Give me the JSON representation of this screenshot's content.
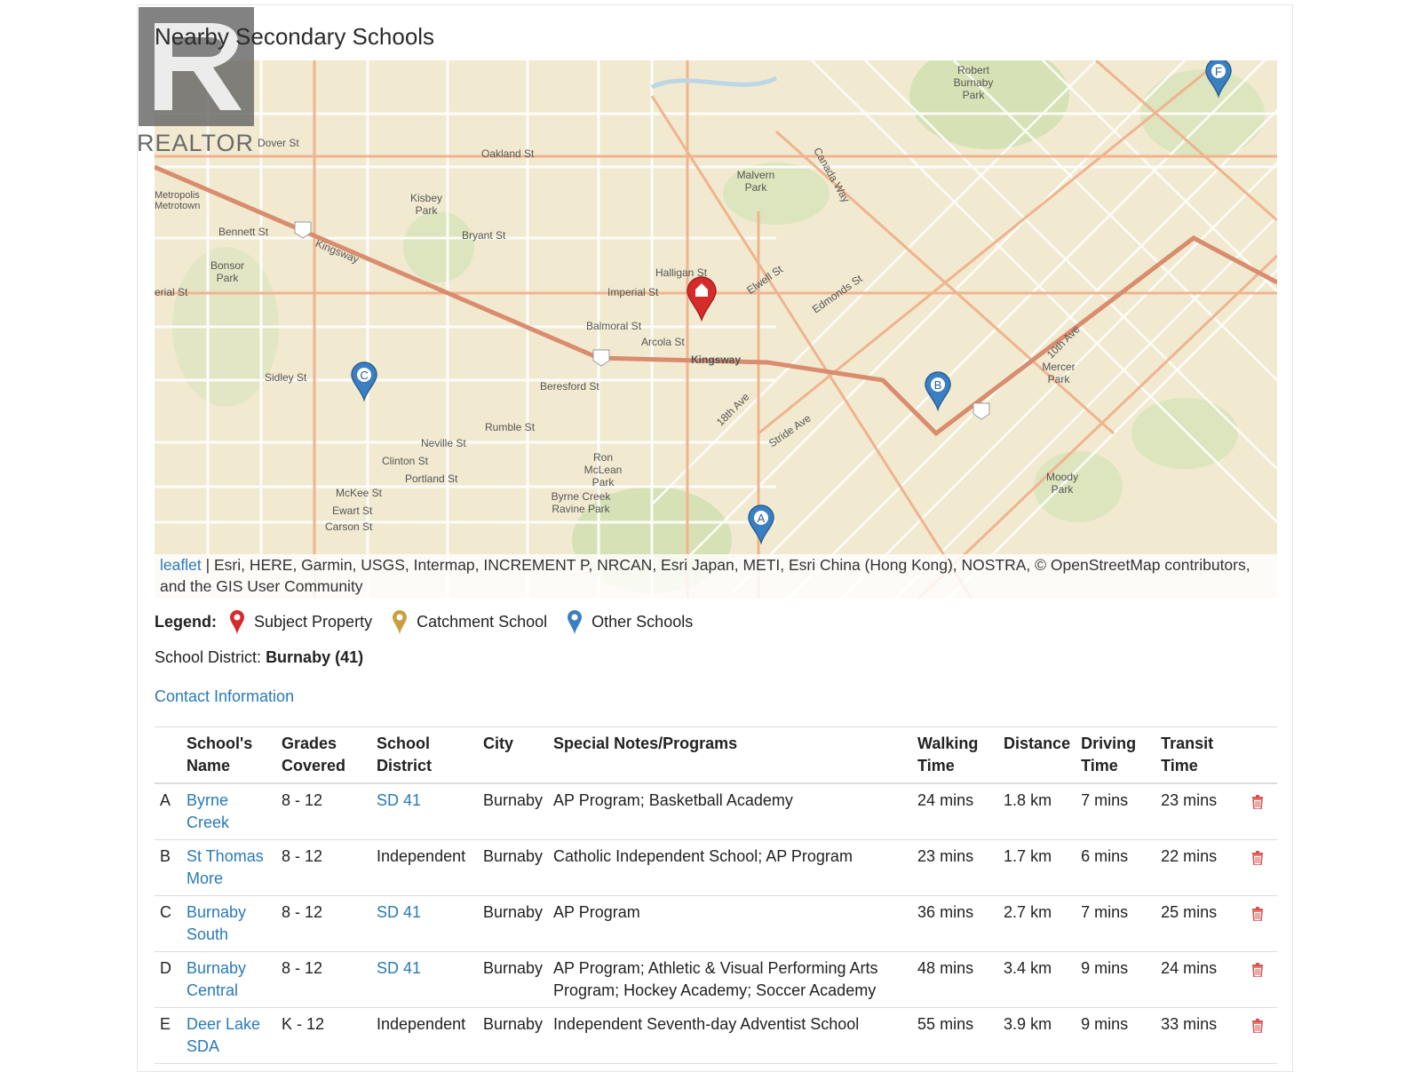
{
  "header": {
    "title": "Nearby Secondary Schools"
  },
  "logo": {
    "text": "REALTOR"
  },
  "map": {
    "attribution_link": "leaflet",
    "attribution_text": " | Esri, HERE, Garmin, USGS, Intermap, INCREMENT P, NRCAN, Esri Japan, METI, Esri China (Hong Kong), NOSTRA, © OpenStreetMap contributors, and the GIS User Community",
    "labels": {
      "oakland": "Oakland St",
      "bennett": "Bennett St",
      "bryant": "Bryant St",
      "kingsway_w": "Kingsway",
      "kingsway_e": "Kingsway",
      "imperial": "Imperial St",
      "halligan": "Halligan St",
      "balmoral": "Balmoral St",
      "arcola": "Arcola St",
      "beresford": "Beresford St",
      "rumble": "Rumble St",
      "neville": "Neville St",
      "clinton": "Clinton St",
      "portland": "Portland St",
      "mckee": "McKee St",
      "ewart": "Ewart St",
      "carson": "Carson St",
      "sidley": "Sidley St",
      "dover": "Dover St",
      "edmonds": "Edmonds St",
      "canada": "Canada Way",
      "elwell": "Elwell St",
      "robert": "Robert Burnaby Park",
      "malvern": "Malvern Park",
      "kisbey": "Kisbey Park",
      "bonsor": "Bonsor Park",
      "ron": "Ron McLean Park",
      "byrne": "Byrne Creek Ravine Park",
      "mercer": "Mercer Park",
      "moody": "Moody Park",
      "metrotown": "Metropolis Metrotown",
      "stride": "Stride Ave",
      "tenth": "10th Ave",
      "eighteenth": "18th Ave",
      "imperial_w": "erial St"
    },
    "markers": {
      "a": "A",
      "b": "B",
      "c": "C",
      "f": "F"
    },
    "colors": {
      "subject": "#d62b2b",
      "catchment": "#c8a040",
      "other": "#3a7fc2"
    }
  },
  "legend": {
    "label": "Legend:",
    "subject": "Subject Property",
    "catchment": "Catchment School",
    "other": "Other Schools"
  },
  "district": {
    "label": "School District:",
    "value": "Burnaby (41)"
  },
  "contact": {
    "label": "Contact Information"
  },
  "table": {
    "headers": {
      "name": "School's Name",
      "grades": "Grades Covered",
      "district": "School District",
      "city": "City",
      "notes": "Special Notes/Programs",
      "walking": "Walking Time",
      "distance": "Distance",
      "driving": "Driving Time",
      "transit": "Transit Time"
    },
    "rows": [
      {
        "letter": "A",
        "name": "Byrne Creek",
        "grades": "8 - 12",
        "district": "SD 41",
        "district_link": true,
        "city": "Burnaby",
        "notes": "AP Program; Basketball Academy",
        "walking": "24 mins",
        "distance": "1.8 km",
        "driving": "7 mins",
        "transit": "23 mins"
      },
      {
        "letter": "B",
        "name": "St Thomas More",
        "grades": "8 - 12",
        "district": "Independent",
        "district_link": false,
        "city": "Burnaby",
        "notes": "Catholic Independent School; AP Program",
        "walking": "23 mins",
        "distance": "1.7 km",
        "driving": "6 mins",
        "transit": "22 mins"
      },
      {
        "letter": "C",
        "name": "Burnaby South",
        "grades": "8 - 12",
        "district": "SD 41",
        "district_link": true,
        "city": "Burnaby",
        "notes": "AP Program",
        "walking": "36 mins",
        "distance": "2.7 km",
        "driving": "7 mins",
        "transit": "25 mins"
      },
      {
        "letter": "D",
        "name": "Burnaby Central",
        "grades": "8 - 12",
        "district": "SD 41",
        "district_link": true,
        "city": "Burnaby",
        "notes": "AP Program; Athletic & Visual Performing Arts Program; Hockey Academy; Soccer Academy",
        "walking": "48 mins",
        "distance": "3.4 km",
        "driving": "9 mins",
        "transit": "24 mins"
      },
      {
        "letter": "E",
        "name": "Deer Lake SDA",
        "grades": "K - 12",
        "district": "Independent",
        "district_link": false,
        "city": "Burnaby",
        "notes": "Independent Seventh-day Adventist School",
        "walking": "55 mins",
        "distance": "3.9 km",
        "driving": "9 mins",
        "transit": "33 mins"
      }
    ]
  }
}
